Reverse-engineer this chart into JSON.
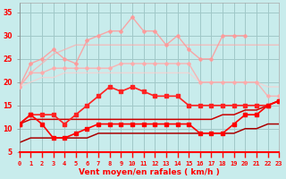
{
  "xlabel": "Vent moyen/en rafales ( km/h )",
  "xlim": [
    0,
    23
  ],
  "ylim": [
    5,
    37
  ],
  "yticks": [
    5,
    10,
    15,
    20,
    25,
    30,
    35
  ],
  "xticks": [
    0,
    1,
    2,
    3,
    4,
    5,
    6,
    7,
    8,
    9,
    10,
    11,
    12,
    13,
    14,
    15,
    16,
    17,
    18,
    19,
    20,
    21,
    22,
    23
  ],
  "bg_color": "#c8ecec",
  "grid_color": "#a0c8c8",
  "series": [
    {
      "y": [
        19,
        22,
        24,
        26,
        27,
        28,
        28,
        28,
        28,
        28,
        28,
        28,
        28,
        28,
        28,
        28,
        28,
        28,
        28,
        28,
        28,
        28,
        28,
        28
      ],
      "color": "#ffaaaa",
      "lw": 1.0,
      "marker": null,
      "ms": 0,
      "alpha": 0.7
    },
    {
      "y": [
        19,
        24,
        25,
        27,
        25,
        24,
        29,
        30,
        31,
        31,
        34,
        31,
        31,
        28,
        30,
        27,
        25,
        25,
        30,
        30,
        30
      ],
      "color": "#ff9999",
      "lw": 1.0,
      "marker": "D",
      "ms": 2,
      "alpha": 0.85
    },
    {
      "y": [
        19,
        22,
        22,
        23,
        23,
        23,
        23,
        23,
        23,
        24,
        24,
        24,
        24,
        24,
        24,
        24,
        20,
        20,
        20,
        20,
        20,
        20,
        17,
        17
      ],
      "color": "#ffaaaa",
      "lw": 1.0,
      "marker": "D",
      "ms": 2,
      "alpha": 0.85
    },
    {
      "y": [
        19,
        20,
        21,
        21,
        22,
        22,
        22,
        22,
        22,
        22,
        22,
        22,
        22,
        22,
        22,
        22,
        20,
        20,
        20,
        20,
        20,
        20,
        19,
        19
      ],
      "color": "#ffcccc",
      "lw": 1.0,
      "marker": null,
      "ms": 0,
      "alpha": 0.7
    },
    {
      "y": [
        11,
        13,
        13,
        13,
        11,
        13,
        15,
        17,
        19,
        18,
        19,
        18,
        17,
        17,
        17,
        15,
        15,
        15,
        15,
        15,
        15,
        15,
        15,
        16
      ],
      "color": "#ff2222",
      "lw": 1.2,
      "marker": "s",
      "ms": 2.5,
      "alpha": 1.0
    },
    {
      "y": [
        11,
        12,
        12,
        12,
        12,
        12,
        12,
        12,
        12,
        12,
        12,
        12,
        12,
        12,
        12,
        12,
        12,
        12,
        13,
        13,
        14,
        14,
        15,
        16
      ],
      "color": "#cc0000",
      "lw": 1.1,
      "marker": null,
      "ms": 0,
      "alpha": 1.0
    },
    {
      "y": [
        11,
        13,
        11,
        8,
        8,
        9,
        10,
        11,
        11,
        11,
        11,
        11,
        11,
        11,
        11,
        11,
        9,
        9,
        9,
        11,
        13,
        13,
        15,
        16
      ],
      "color": "#ff0000",
      "lw": 1.2,
      "marker": "s",
      "ms": 2.5,
      "alpha": 1.0
    },
    {
      "y": [
        7,
        8,
        8,
        8,
        8,
        8,
        8,
        9,
        9,
        9,
        9,
        9,
        9,
        9,
        9,
        9,
        9,
        9,
        9,
        9,
        10,
        10,
        11,
        11
      ],
      "color": "#aa0000",
      "lw": 1.1,
      "marker": null,
      "ms": 0,
      "alpha": 1.0
    }
  ]
}
